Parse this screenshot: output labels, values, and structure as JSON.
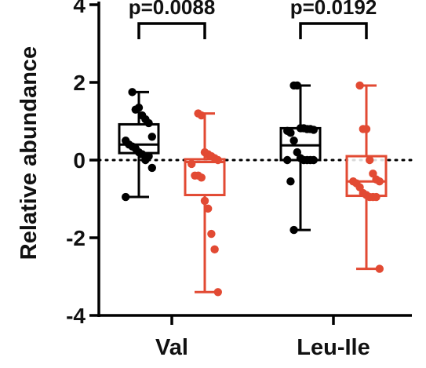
{
  "chart_data": {
    "type": "box",
    "title": "",
    "xlabel": "",
    "ylabel": "Relative abundance",
    "ylim": [
      -4,
      4
    ],
    "yticks": [
      4,
      2,
      0,
      -2,
      -4
    ],
    "ytick_labels": [
      "4",
      "2",
      "0",
      "-2",
      "-4"
    ],
    "reference_line": {
      "y": 0,
      "style": "dotted"
    },
    "groups": [
      {
        "label": "Val",
        "p_value": "p=0.0088",
        "boxes": [
          {
            "color": "#000000",
            "whisker_low": -0.95,
            "q1": 0.18,
            "median": 0.4,
            "q3": 0.92,
            "whisker_high": 1.75,
            "points": [
              1.75,
              1.3,
              1.35,
              1.15,
              1.05,
              0.95,
              0.6,
              0.5,
              0.4,
              0.35,
              0.3,
              0.2,
              0.15,
              0.0,
              0.1,
              -0.2,
              -0.95
            ]
          },
          {
            "color": "#e24a33",
            "whisker_low": -3.4,
            "q1": -0.9,
            "median": -0.05,
            "q3": 0.02,
            "whisker_high": 1.2,
            "points": [
              1.2,
              1.15,
              0.2,
              0.15,
              0.1,
              0.05,
              0.0,
              -0.1,
              -0.4,
              -0.4,
              -0.45,
              -1.05,
              -1.25,
              -1.9,
              -2.3,
              -3.4
            ]
          }
        ]
      },
      {
        "label": "Leu-Ile",
        "p_value": "p=0.0192",
        "boxes": [
          {
            "color": "#000000",
            "whisker_low": -1.8,
            "q1": 0.0,
            "median": 0.38,
            "q3": 0.82,
            "whisker_high": 1.92,
            "points": [
              1.92,
              1.92,
              0.82,
              0.82,
              0.8,
              0.8,
              0.78,
              0.75,
              0.7,
              0.5,
              0.2,
              0.05,
              0.0,
              0.0,
              0.0,
              0.0,
              0.0,
              -0.55,
              -1.8
            ]
          },
          {
            "color": "#e24a33",
            "whisker_low": -2.8,
            "q1": -0.92,
            "median": -0.55,
            "q3": 0.1,
            "whisker_high": 1.92,
            "points": [
              1.92,
              0.8,
              0.8,
              0.0,
              -0.35,
              -0.5,
              -0.55,
              -0.55,
              -0.6,
              -0.7,
              -0.85,
              -0.9,
              -0.95,
              -0.95,
              -0.95,
              -2.8
            ]
          }
        ]
      }
    ]
  }
}
